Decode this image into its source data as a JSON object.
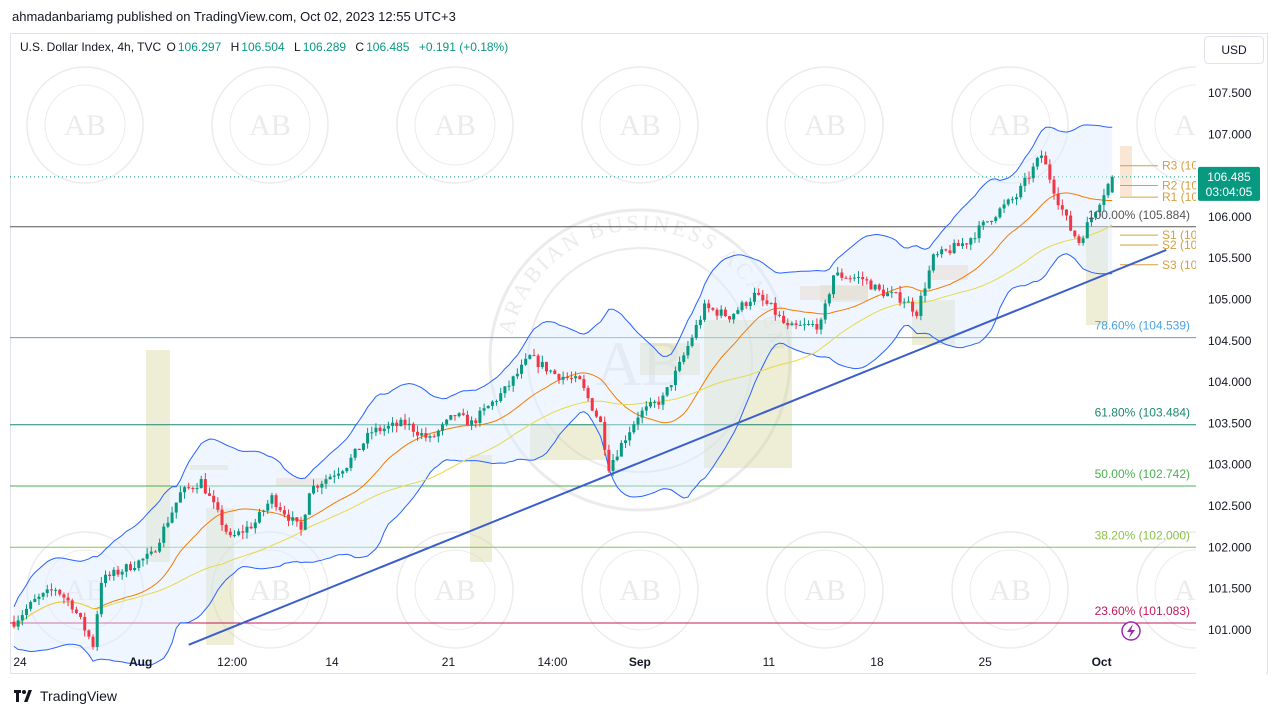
{
  "header": {
    "published_by": "ahmadanbariamg published on TradingView.com, Oct 02, 2023 12:55 UTC+3"
  },
  "legend": {
    "symbol": "U.S. Dollar Index, 4h, TVC",
    "open_label": "O",
    "open": "106.297",
    "high_label": "H",
    "high": "106.504",
    "low_label": "L",
    "low": "106.289",
    "close_label": "C",
    "close": "106.485",
    "change": "+0.191 (+0.18%)"
  },
  "currency": "USD",
  "price_tag": {
    "price": "106.485",
    "countdown": "03:04:05"
  },
  "footer": {
    "brand": "TradingView"
  },
  "watermark": {
    "text": "ARABIAN BUSINESS ACADEMY",
    "logo": "AB"
  },
  "colors": {
    "up": "#089981",
    "down": "#f23645",
    "trendline": "#3a5fcd",
    "bands": "#2962ff",
    "basis": "#f57c00",
    "ma": "#e8d84a",
    "fib_786": "#4ba3e3",
    "fib_618": "#1a8a6e",
    "fib_500": "#4caf50",
    "fib_382": "#8bc34a",
    "fib_236": "#c2185b",
    "pivot": "#d4a040",
    "price_tag": "#089981"
  },
  "chart_data": {
    "type": "candlestick",
    "interval": "4h",
    "yaxis": {
      "ylim": [
        100.82,
        107.85
      ],
      "ticks": [
        "107.500",
        "107.000",
        "106.500",
        "106.000",
        "105.500",
        "105.000",
        "104.500",
        "104.000",
        "103.500",
        "103.000",
        "102.500",
        "102.000",
        "101.500",
        "101.000"
      ]
    },
    "xaxis": {
      "labels": [
        {
          "text": "24",
          "i": 0
        },
        {
          "text": "Aug",
          "i": 29
        },
        {
          "text": "12:00",
          "i": 51
        },
        {
          "text": "14",
          "i": 75
        },
        {
          "text": "21",
          "i": 103
        },
        {
          "text": "14:00",
          "i": 128
        },
        {
          "text": "Sep",
          "i": 149
        },
        {
          "text": "11",
          "i": 180
        },
        {
          "text": "18",
          "i": 206
        },
        {
          "text": "25",
          "i": 232
        },
        {
          "text": "Oct",
          "i": 260
        }
      ],
      "bar_count": 265
    },
    "fibonacci": [
      {
        "label": "78.60% (104.539)",
        "value": 104.539,
        "level": "78.6"
      },
      {
        "label": "61.80% (103.484)",
        "value": 103.484,
        "level": "61.8"
      },
      {
        "label": "50.00% (102.742)",
        "value": 102.742,
        "level": "50.0"
      },
      {
        "label": "38.20% (102.000)",
        "value": 102.0,
        "level": "38.2"
      },
      {
        "label": "23.60% (101.083)",
        "value": 101.083,
        "level": "23.6"
      }
    ],
    "horizontal_line": {
      "value": 105.88,
      "label": "100.00% (105.884)"
    },
    "pivots": [
      {
        "label": "R3 (10",
        "value": 106.62
      },
      {
        "label": "R2 (10",
        "value": 106.38
      },
      {
        "label": "R1 (10",
        "value": 106.24
      },
      {
        "label": "S1 (10",
        "value": 105.78
      },
      {
        "label": "S2 (10",
        "value": 105.66
      },
      {
        "label": "S3 (10",
        "value": 105.42
      }
    ],
    "trendline": {
      "from": {
        "i": 42,
        "y": 100.82
      },
      "to": {
        "i": 277,
        "y": 105.6
      }
    },
    "last_price": 106.485,
    "price_path": [
      {
        "i": 0,
        "y": 101.1
      },
      {
        "i": 5,
        "y": 101.35
      },
      {
        "i": 10,
        "y": 101.5
      },
      {
        "i": 14,
        "y": 101.3
      },
      {
        "i": 19,
        "y": 100.82
      },
      {
        "i": 21,
        "y": 101.6
      },
      {
        "i": 27,
        "y": 101.75
      },
      {
        "i": 33,
        "y": 101.9
      },
      {
        "i": 40,
        "y": 102.65
      },
      {
        "i": 45,
        "y": 102.8
      },
      {
        "i": 52,
        "y": 102.1
      },
      {
        "i": 58,
        "y": 102.3
      },
      {
        "i": 62,
        "y": 102.6
      },
      {
        "i": 69,
        "y": 102.2
      },
      {
        "i": 71,
        "y": 102.7
      },
      {
        "i": 80,
        "y": 103.0
      },
      {
        "i": 86,
        "y": 103.4
      },
      {
        "i": 94,
        "y": 103.5
      },
      {
        "i": 100,
        "y": 103.3
      },
      {
        "i": 106,
        "y": 103.6
      },
      {
        "i": 110,
        "y": 103.5
      },
      {
        "i": 118,
        "y": 103.9
      },
      {
        "i": 124,
        "y": 104.3
      },
      {
        "i": 130,
        "y": 104.1
      },
      {
        "i": 136,
        "y": 104.0
      },
      {
        "i": 141,
        "y": 103.5
      },
      {
        "i": 143,
        "y": 102.98
      },
      {
        "i": 150,
        "y": 103.6
      },
      {
        "i": 156,
        "y": 103.8
      },
      {
        "i": 160,
        "y": 104.2
      },
      {
        "i": 166,
        "y": 104.9
      },
      {
        "i": 172,
        "y": 104.8
      },
      {
        "i": 178,
        "y": 105.05
      },
      {
        "i": 182,
        "y": 104.9
      },
      {
        "i": 186,
        "y": 104.65
      },
      {
        "i": 194,
        "y": 104.7
      },
      {
        "i": 197,
        "y": 105.3
      },
      {
        "i": 204,
        "y": 105.25
      },
      {
        "i": 208,
        "y": 105.1
      },
      {
        "i": 214,
        "y": 105.0
      },
      {
        "i": 217,
        "y": 104.85
      },
      {
        "i": 221,
        "y": 105.5
      },
      {
        "i": 229,
        "y": 105.7
      },
      {
        "i": 235,
        "y": 106.0
      },
      {
        "i": 241,
        "y": 106.25
      },
      {
        "i": 247,
        "y": 106.75
      },
      {
        "i": 251,
        "y": 106.2
      },
      {
        "i": 254,
        "y": 105.85
      },
      {
        "i": 256,
        "y": 105.7
      },
      {
        "i": 262,
        "y": 106.3
      },
      {
        "i": 264,
        "y": 106.485
      }
    ]
  }
}
